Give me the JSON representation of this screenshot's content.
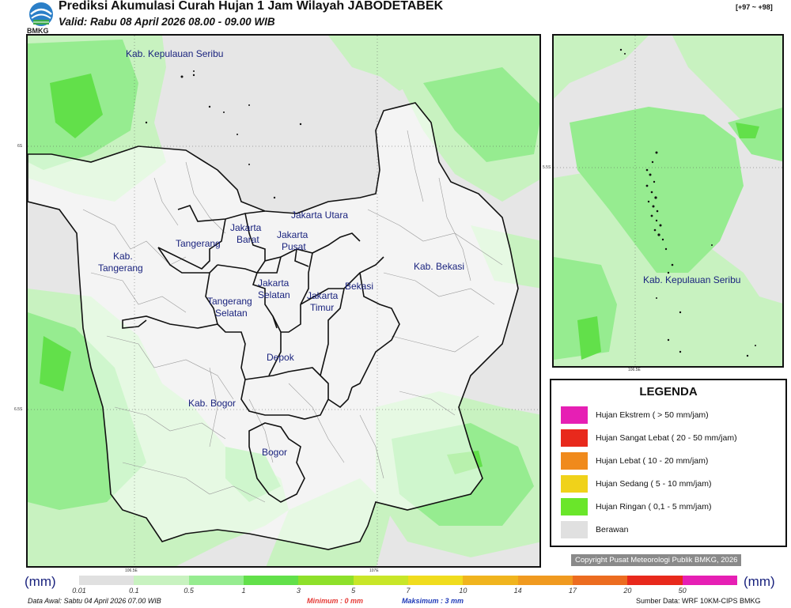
{
  "header": {
    "title": "Prediksi Akumulasi Curah Hujan 1 Jam Wilayah JABODETABEK",
    "valid": "Valid: Rabu 08 April 2026 08.00 - 09.00 WIB",
    "range": "[+97 ~ +98]",
    "logo_text": "BMKG"
  },
  "map": {
    "regions": [
      {
        "name": "Kab. Kepulauan Seribu",
        "id": "kab-kepulauan-seribu"
      },
      {
        "name": "Jakarta Utara",
        "id": "jakarta-utara"
      },
      {
        "name": "Jakarta Barat",
        "id": "jakarta-barat"
      },
      {
        "name": "Jakarta Pusat",
        "id": "jakarta-pusat"
      },
      {
        "name": "Tangerang",
        "id": "tangerang"
      },
      {
        "name": "Kab. Tangerang",
        "id": "kab-tangerang"
      },
      {
        "name": "Jakarta Selatan",
        "id": "jakarta-selatan"
      },
      {
        "name": "Jakarta Timur",
        "id": "jakarta-timur"
      },
      {
        "name": "Bekasi",
        "id": "bekasi"
      },
      {
        "name": "Kab. Bekasi",
        "id": "kab-bekasi"
      },
      {
        "name": "Tangerang Selatan",
        "id": "tangerang-selatan"
      },
      {
        "name": "Depok",
        "id": "depok"
      },
      {
        "name": "Kab. Bogor",
        "id": "kab-bogor"
      },
      {
        "name": "Bogor",
        "id": "bogor"
      }
    ],
    "lat_ticks": [
      "6S",
      "6.5S"
    ],
    "lon_ticks": [
      "106.5E",
      "107E"
    ]
  },
  "inset": {
    "label": "Kab. Kepulauan Seribu",
    "lat_tick": "5.5S",
    "lon_tick": "106.5E"
  },
  "legend": {
    "title": "LEGENDA",
    "items": [
      {
        "label": "Hujan Ekstrem ( > 50 mm/jam)",
        "color": "#e61fb4"
      },
      {
        "label": "Hujan Sangat Lebat ( 20 - 50 mm/jam)",
        "color": "#e8291c"
      },
      {
        "label": "Hujan Lebat ( 10 - 20 mm/jam)",
        "color": "#f08a1c"
      },
      {
        "label": "Hujan Sedang ( 5 - 10 mm/jam)",
        "color": "#f0d21a"
      },
      {
        "label": "Hujan Ringan ( 0,1 - 5 mm/jam)",
        "color": "#6ae62a"
      },
      {
        "label": "Berawan",
        "color": "#e0e0e0"
      }
    ]
  },
  "copyright": "Copyright Pusat Meteorologi Publik BMKG, 2026",
  "colorbar": {
    "unit": "(mm)",
    "ticks": [
      "0.01",
      "0.1",
      "0.5",
      "1",
      "3",
      "5",
      "7",
      "10",
      "14",
      "17",
      "20",
      "50"
    ],
    "colors": [
      "#e0e0e0",
      "#c8f2c0",
      "#96ec90",
      "#62e04a",
      "#8ee02a",
      "#c8e628",
      "#f0dc1e",
      "#f0b41e",
      "#f09a20",
      "#ec6c20",
      "#e8291c",
      "#e61fb4"
    ]
  },
  "footer": {
    "data_awal": "Data Awal: Sabtu 04 April 2026 07.00 WIB",
    "minimum": "Minimum :     0 mm",
    "maximum": "Maksimum :     3 mm",
    "source": "Sumber Data: WRF 10KM-CIPS BMKG"
  }
}
